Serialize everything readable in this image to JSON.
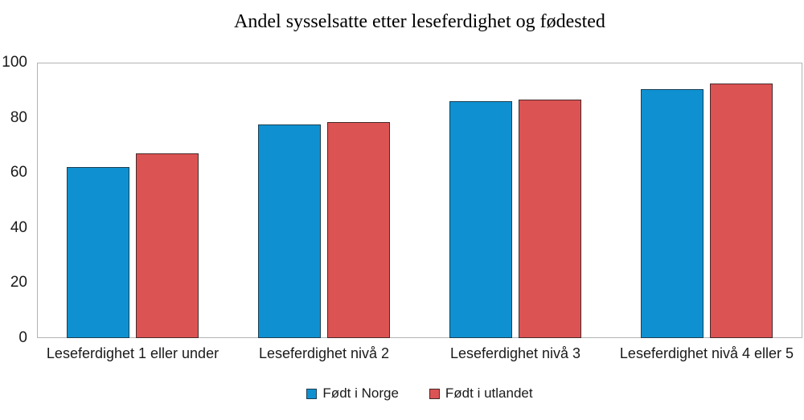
{
  "page": {
    "background": "#ffffff"
  },
  "chart_data": {
    "type": "bar",
    "title": "Andel sysselsatte etter leseferdighet og fødested",
    "categories": [
      "Leseferdighet 1 eller under",
      "Leseferdighet nivå 2",
      "Leseferdighet nivå 3",
      "Leseferdighet nivå 4 eller 5"
    ],
    "series": [
      {
        "name": "Født i Norge",
        "color": "#0f91d1",
        "border_color": "#1c3e52",
        "values": [
          62,
          77.5,
          86,
          90.5
        ]
      },
      {
        "name": "Født i utlandet",
        "color": "#dc5353",
        "border_color": "#46292b",
        "values": [
          67,
          78.5,
          86.5,
          92.5
        ]
      }
    ],
    "xlabel": "",
    "ylabel": "",
    "ylim": [
      0,
      100
    ],
    "yticks": [
      0,
      20,
      40,
      60,
      80,
      100
    ],
    "grid": false,
    "legend_position": "bottom",
    "axis_color": "#b3b3b3",
    "text_color": "#1a1a1a"
  }
}
